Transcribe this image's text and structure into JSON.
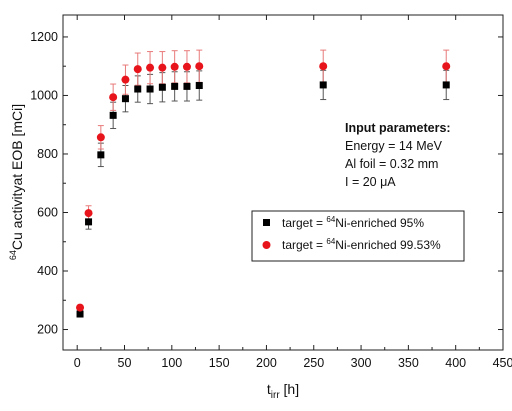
{
  "chart_data": {
    "type": "scatter",
    "xlabel_main": "t",
    "xlabel_sub": "irr",
    "xlabel_unit": " [h]",
    "ylabel_sup": "64",
    "ylabel_rest": "Cu activityat EOB [mCi]",
    "xlim": [
      -15,
      450
    ],
    "ylim": [
      130,
      1275
    ],
    "xticks": [
      0,
      50,
      100,
      150,
      200,
      250,
      300,
      350,
      400,
      450
    ],
    "yticks": [
      200,
      400,
      600,
      800,
      1000,
      1200
    ],
    "legend_position": "right",
    "annotation": {
      "title": "Input parameters:",
      "lines": [
        "Energy = 14 MeV",
        "Al foil = 0.32 mm",
        "I = 20 μA"
      ]
    },
    "series": [
      {
        "name_pre": "target = ",
        "name_sup": "64",
        "name_post": "Ni-enriched 95%",
        "marker": "square",
        "color": "#000000",
        "errcolor": "#555555",
        "x": [
          3,
          12,
          25,
          38,
          51,
          64,
          77,
          90,
          103,
          116,
          129,
          260,
          390
        ],
        "y": [
          253,
          568,
          797,
          932,
          989,
          1022,
          1022,
          1028,
          1031,
          1031,
          1034,
          1036,
          1036
        ],
        "err": [
          0,
          25,
          40,
          45,
          45,
          45,
          50,
          50,
          50,
          50,
          50,
          50,
          50
        ]
      },
      {
        "name_pre": "target = ",
        "name_sup": "64",
        "name_post": "Ni-enriched 99.53%",
        "marker": "circle",
        "color": "#e8141b",
        "errcolor": "#e87a7a",
        "x": [
          3,
          12,
          25,
          38,
          51,
          64,
          77,
          90,
          103,
          116,
          129,
          260,
          390
        ],
        "y": [
          275,
          598,
          857,
          994,
          1054,
          1090,
          1095,
          1095,
          1098,
          1098,
          1100,
          1100,
          1100
        ],
        "err": [
          0,
          25,
          40,
          45,
          50,
          55,
          55,
          55,
          55,
          55,
          55,
          55,
          55
        ]
      }
    ]
  }
}
